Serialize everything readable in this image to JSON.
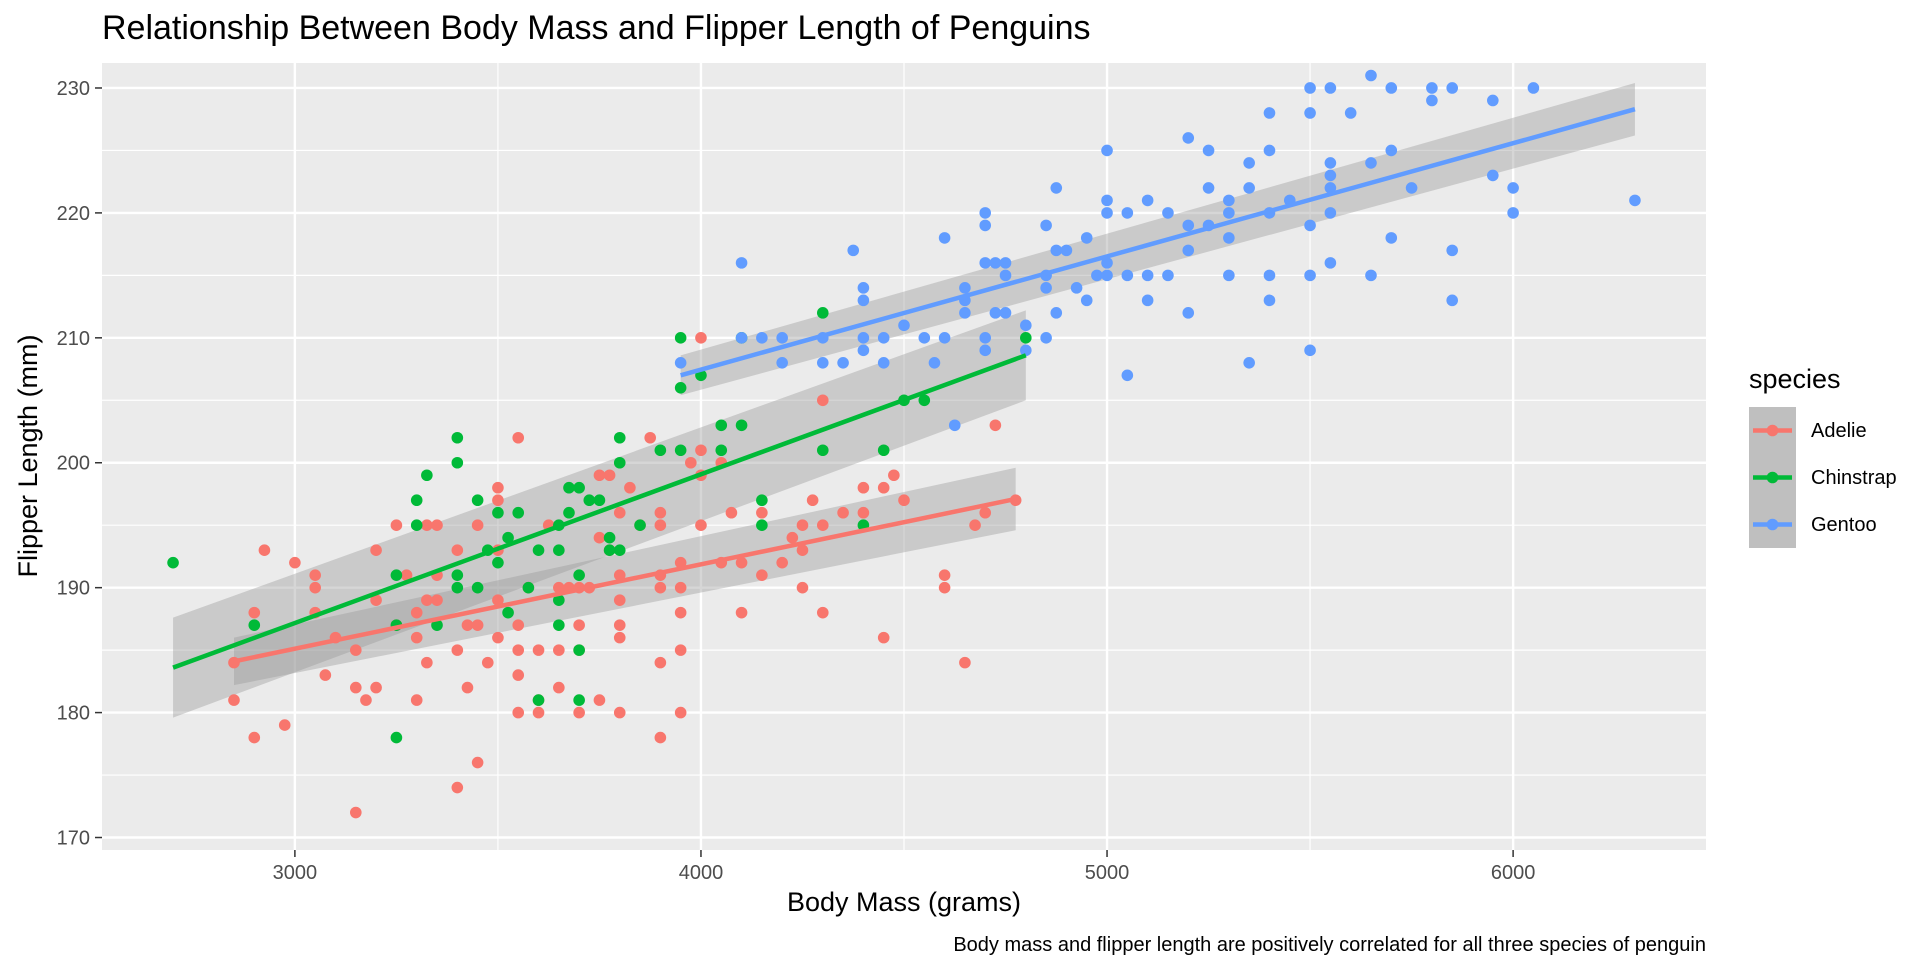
{
  "chart_data": {
    "type": "scatter",
    "title": "Relationship Between Body Mass and Flipper Length of Penguins",
    "caption": "Body mass and flipper length are positively correlated for all three species of penguin",
    "xlabel": "Body Mass (grams)",
    "ylabel": "Flipper Length (mm)",
    "xlim": [
      2525,
      6475
    ],
    "ylim": [
      169,
      232
    ],
    "x_ticks": [
      3000,
      4000,
      5000,
      6000
    ],
    "y_ticks": [
      170,
      180,
      190,
      200,
      210,
      220,
      230
    ],
    "grid": true,
    "legend": {
      "title": "species",
      "position": "right"
    },
    "series": [
      {
        "name": "Adelie",
        "color": "#F8766D",
        "points": [
          [
            2850,
            184
          ],
          [
            2850,
            181
          ],
          [
            2900,
            188
          ],
          [
            2900,
            178
          ],
          [
            2925,
            193
          ],
          [
            2975,
            179
          ],
          [
            3000,
            192
          ],
          [
            3050,
            191
          ],
          [
            3050,
            190
          ],
          [
            3050,
            188
          ],
          [
            3075,
            183
          ],
          [
            3100,
            186
          ],
          [
            3150,
            172
          ],
          [
            3150,
            182
          ],
          [
            3150,
            185
          ],
          [
            3175,
            181
          ],
          [
            3200,
            193
          ],
          [
            3200,
            182
          ],
          [
            3200,
            189
          ],
          [
            3250,
            195
          ],
          [
            3250,
            187
          ],
          [
            3275,
            191
          ],
          [
            3300,
            181
          ],
          [
            3300,
            186
          ],
          [
            3300,
            188
          ],
          [
            3325,
            195
          ],
          [
            3325,
            184
          ],
          [
            3325,
            189
          ],
          [
            3350,
            195
          ],
          [
            3350,
            191
          ],
          [
            3350,
            189
          ],
          [
            3400,
            193
          ],
          [
            3400,
            185
          ],
          [
            3400,
            174
          ],
          [
            3425,
            187
          ],
          [
            3425,
            182
          ],
          [
            3450,
            195
          ],
          [
            3450,
            187
          ],
          [
            3450,
            176
          ],
          [
            3475,
            184
          ],
          [
            3500,
            198
          ],
          [
            3500,
            197
          ],
          [
            3500,
            193
          ],
          [
            3500,
            189
          ],
          [
            3500,
            186
          ],
          [
            3550,
            202
          ],
          [
            3550,
            187
          ],
          [
            3550,
            185
          ],
          [
            3550,
            183
          ],
          [
            3550,
            180
          ],
          [
            3575,
            190
          ],
          [
            3600,
            185
          ],
          [
            3600,
            180
          ],
          [
            3600,
            181
          ],
          [
            3625,
            195
          ],
          [
            3650,
            190
          ],
          [
            3650,
            185
          ],
          [
            3650,
            182
          ],
          [
            3675,
            190
          ],
          [
            3700,
            190
          ],
          [
            3700,
            187
          ],
          [
            3700,
            185
          ],
          [
            3700,
            180
          ],
          [
            3725,
            190
          ],
          [
            3750,
            199
          ],
          [
            3750,
            194
          ],
          [
            3750,
            181
          ],
          [
            3775,
            199
          ],
          [
            3775,
            193
          ],
          [
            3800,
            196
          ],
          [
            3800,
            191
          ],
          [
            3800,
            189
          ],
          [
            3800,
            187
          ],
          [
            3800,
            186
          ],
          [
            3800,
            180
          ],
          [
            3825,
            198
          ],
          [
            3850,
            195
          ],
          [
            3875,
            202
          ],
          [
            3900,
            196
          ],
          [
            3900,
            195
          ],
          [
            3900,
            191
          ],
          [
            3900,
            190
          ],
          [
            3900,
            184
          ],
          [
            3900,
            178
          ],
          [
            3950,
            192
          ],
          [
            3950,
            190
          ],
          [
            3950,
            188
          ],
          [
            3950,
            185
          ],
          [
            3950,
            180
          ],
          [
            3975,
            200
          ],
          [
            4000,
            210
          ],
          [
            4000,
            201
          ],
          [
            4000,
            199
          ],
          [
            4000,
            195
          ],
          [
            4050,
            200
          ],
          [
            4050,
            192
          ],
          [
            4075,
            196
          ],
          [
            4100,
            192
          ],
          [
            4100,
            188
          ],
          [
            4150,
            196
          ],
          [
            4150,
            191
          ],
          [
            4200,
            192
          ],
          [
            4225,
            194
          ],
          [
            4250,
            195
          ],
          [
            4250,
            193
          ],
          [
            4250,
            190
          ],
          [
            4275,
            197
          ],
          [
            4300,
            205
          ],
          [
            4300,
            195
          ],
          [
            4300,
            188
          ],
          [
            4350,
            196
          ],
          [
            4400,
            198
          ],
          [
            4400,
            196
          ],
          [
            4450,
            198
          ],
          [
            4450,
            186
          ],
          [
            4475,
            199
          ],
          [
            4500,
            197
          ],
          [
            4600,
            191
          ],
          [
            4600,
            190
          ],
          [
            4650,
            184
          ],
          [
            4675,
            195
          ],
          [
            4700,
            196
          ],
          [
            4725,
            203
          ],
          [
            4775,
            197
          ]
        ],
        "trend": {
          "x": [
            2850,
            4775
          ],
          "y": [
            184.1,
            197.1
          ],
          "band": [
            1.9,
            2.5
          ]
        }
      },
      {
        "name": "Chinstrap",
        "color": "#00BA38",
        "points": [
          [
            2700,
            192
          ],
          [
            2900,
            187
          ],
          [
            3250,
            191
          ],
          [
            3250,
            187
          ],
          [
            3250,
            178
          ],
          [
            3300,
            195
          ],
          [
            3300,
            197
          ],
          [
            3325,
            199
          ],
          [
            3350,
            187
          ],
          [
            3400,
            202
          ],
          [
            3400,
            200
          ],
          [
            3400,
            191
          ],
          [
            3400,
            190
          ],
          [
            3450,
            197
          ],
          [
            3450,
            190
          ],
          [
            3475,
            193
          ],
          [
            3500,
            196
          ],
          [
            3500,
            192
          ],
          [
            3525,
            188
          ],
          [
            3525,
            194
          ],
          [
            3550,
            196
          ],
          [
            3575,
            190
          ],
          [
            3600,
            193
          ],
          [
            3600,
            181
          ],
          [
            3650,
            195
          ],
          [
            3650,
            193
          ],
          [
            3650,
            189
          ],
          [
            3650,
            187
          ],
          [
            3675,
            196
          ],
          [
            3675,
            198
          ],
          [
            3700,
            198
          ],
          [
            3700,
            191
          ],
          [
            3700,
            185
          ],
          [
            3700,
            181
          ],
          [
            3725,
            197
          ],
          [
            3750,
            197
          ],
          [
            3775,
            194
          ],
          [
            3775,
            193
          ],
          [
            3800,
            202
          ],
          [
            3800,
            200
          ],
          [
            3800,
            193
          ],
          [
            3850,
            195
          ],
          [
            3900,
            201
          ],
          [
            3950,
            210
          ],
          [
            3950,
            206
          ],
          [
            3950,
            201
          ],
          [
            4000,
            207
          ],
          [
            4050,
            203
          ],
          [
            4050,
            201
          ],
          [
            4100,
            210
          ],
          [
            4100,
            203
          ],
          [
            4150,
            197
          ],
          [
            4150,
            195
          ],
          [
            4300,
            212
          ],
          [
            4300,
            201
          ],
          [
            4400,
            195
          ],
          [
            4450,
            201
          ],
          [
            4500,
            205
          ],
          [
            4550,
            205
          ],
          [
            4800,
            210
          ]
        ],
        "trend": {
          "x": [
            2700,
            4800
          ],
          "y": [
            183.6,
            208.6
          ],
          "band": [
            4.0,
            3.6
          ]
        }
      },
      {
        "name": "Gentoo",
        "color": "#619CFF",
        "points": [
          [
            3950,
            208
          ],
          [
            4100,
            216
          ],
          [
            4100,
            210
          ],
          [
            4150,
            210
          ],
          [
            4200,
            210
          ],
          [
            4200,
            208
          ],
          [
            4300,
            210
          ],
          [
            4300,
            208
          ],
          [
            4350,
            208
          ],
          [
            4375,
            217
          ],
          [
            4400,
            214
          ],
          [
            4400,
            213
          ],
          [
            4400,
            210
          ],
          [
            4400,
            209
          ],
          [
            4450,
            210
          ],
          [
            4450,
            208
          ],
          [
            4500,
            211
          ],
          [
            4550,
            210
          ],
          [
            4575,
            208
          ],
          [
            4600,
            218
          ],
          [
            4600,
            210
          ],
          [
            4625,
            203
          ],
          [
            4650,
            214
          ],
          [
            4650,
            213
          ],
          [
            4650,
            212
          ],
          [
            4700,
            220
          ],
          [
            4700,
            219
          ],
          [
            4700,
            216
          ],
          [
            4700,
            210
          ],
          [
            4700,
            209
          ],
          [
            4725,
            216
          ],
          [
            4725,
            212
          ],
          [
            4750,
            216
          ],
          [
            4750,
            215
          ],
          [
            4750,
            212
          ],
          [
            4800,
            211
          ],
          [
            4800,
            209
          ],
          [
            4850,
            219
          ],
          [
            4850,
            215
          ],
          [
            4850,
            214
          ],
          [
            4850,
            210
          ],
          [
            4875,
            222
          ],
          [
            4875,
            217
          ],
          [
            4875,
            212
          ],
          [
            4900,
            217
          ],
          [
            4925,
            214
          ],
          [
            4950,
            218
          ],
          [
            4950,
            213
          ],
          [
            4975,
            215
          ],
          [
            5000,
            225
          ],
          [
            5000,
            221
          ],
          [
            5000,
            220
          ],
          [
            5000,
            216
          ],
          [
            5000,
            215
          ],
          [
            5050,
            220
          ],
          [
            5050,
            215
          ],
          [
            5050,
            207
          ],
          [
            5100,
            221
          ],
          [
            5100,
            215
          ],
          [
            5100,
            213
          ],
          [
            5150,
            220
          ],
          [
            5150,
            215
          ],
          [
            5200,
            226
          ],
          [
            5200,
            219
          ],
          [
            5200,
            217
          ],
          [
            5200,
            212
          ],
          [
            5250,
            225
          ],
          [
            5250,
            222
          ],
          [
            5250,
            219
          ],
          [
            5300,
            221
          ],
          [
            5300,
            220
          ],
          [
            5300,
            218
          ],
          [
            5300,
            215
          ],
          [
            5350,
            224
          ],
          [
            5350,
            222
          ],
          [
            5350,
            208
          ],
          [
            5400,
            228
          ],
          [
            5400,
            225
          ],
          [
            5400,
            220
          ],
          [
            5400,
            215
          ],
          [
            5400,
            213
          ],
          [
            5450,
            221
          ],
          [
            5500,
            230
          ],
          [
            5500,
            228
          ],
          [
            5500,
            219
          ],
          [
            5500,
            215
          ],
          [
            5500,
            209
          ],
          [
            5550,
            230
          ],
          [
            5550,
            224
          ],
          [
            5550,
            223
          ],
          [
            5550,
            222
          ],
          [
            5550,
            220
          ],
          [
            5550,
            216
          ],
          [
            5600,
            228
          ],
          [
            5650,
            231
          ],
          [
            5650,
            224
          ],
          [
            5650,
            215
          ],
          [
            5700,
            230
          ],
          [
            5700,
            225
          ],
          [
            5700,
            218
          ],
          [
            5750,
            222
          ],
          [
            5800,
            230
          ],
          [
            5800,
            229
          ],
          [
            5850,
            230
          ],
          [
            5850,
            217
          ],
          [
            5850,
            213
          ],
          [
            5950,
            229
          ],
          [
            5950,
            223
          ],
          [
            6000,
            222
          ],
          [
            6000,
            220
          ],
          [
            6050,
            230
          ],
          [
            6300,
            221
          ]
        ],
        "trend": {
          "x": [
            3950,
            6300
          ],
          "y": [
            207.0,
            228.3
          ],
          "band": [
            1.6,
            2.1
          ]
        }
      }
    ]
  }
}
